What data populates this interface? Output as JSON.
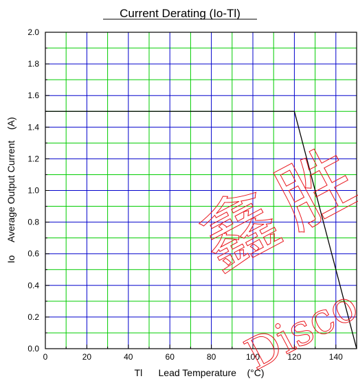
{
  "chart_data": {
    "type": "line",
    "title": "Current Derating  (Io-Tl)",
    "xlabel": "Tl      Lead Temperature    (°C)",
    "ylabel": "Io     Average Output Current    (A)",
    "xlim": [
      0,
      150
    ],
    "ylim": [
      0,
      2.0
    ],
    "x_ticks": [
      "0",
      "20",
      "40",
      "60",
      "80",
      "100",
      "120",
      "140"
    ],
    "y_ticks": [
      "0.0",
      "0.2",
      "0.4",
      "0.6",
      "0.8",
      "1.0",
      "1.2",
      "1.4",
      "1.6",
      "1.8",
      "2.0"
    ],
    "grid": true,
    "grid_major_color": "#0000cc",
    "grid_minor_color": "#00cc00",
    "series": [
      {
        "x": [
          0,
          120,
          150
        ],
        "y": [
          1.5,
          1.5,
          0.0
        ],
        "color": "#000000"
      }
    ]
  },
  "watermark": {
    "color": "#e8141b",
    "chars": [
      "鑫",
      "胜",
      "Disco"
    ]
  }
}
